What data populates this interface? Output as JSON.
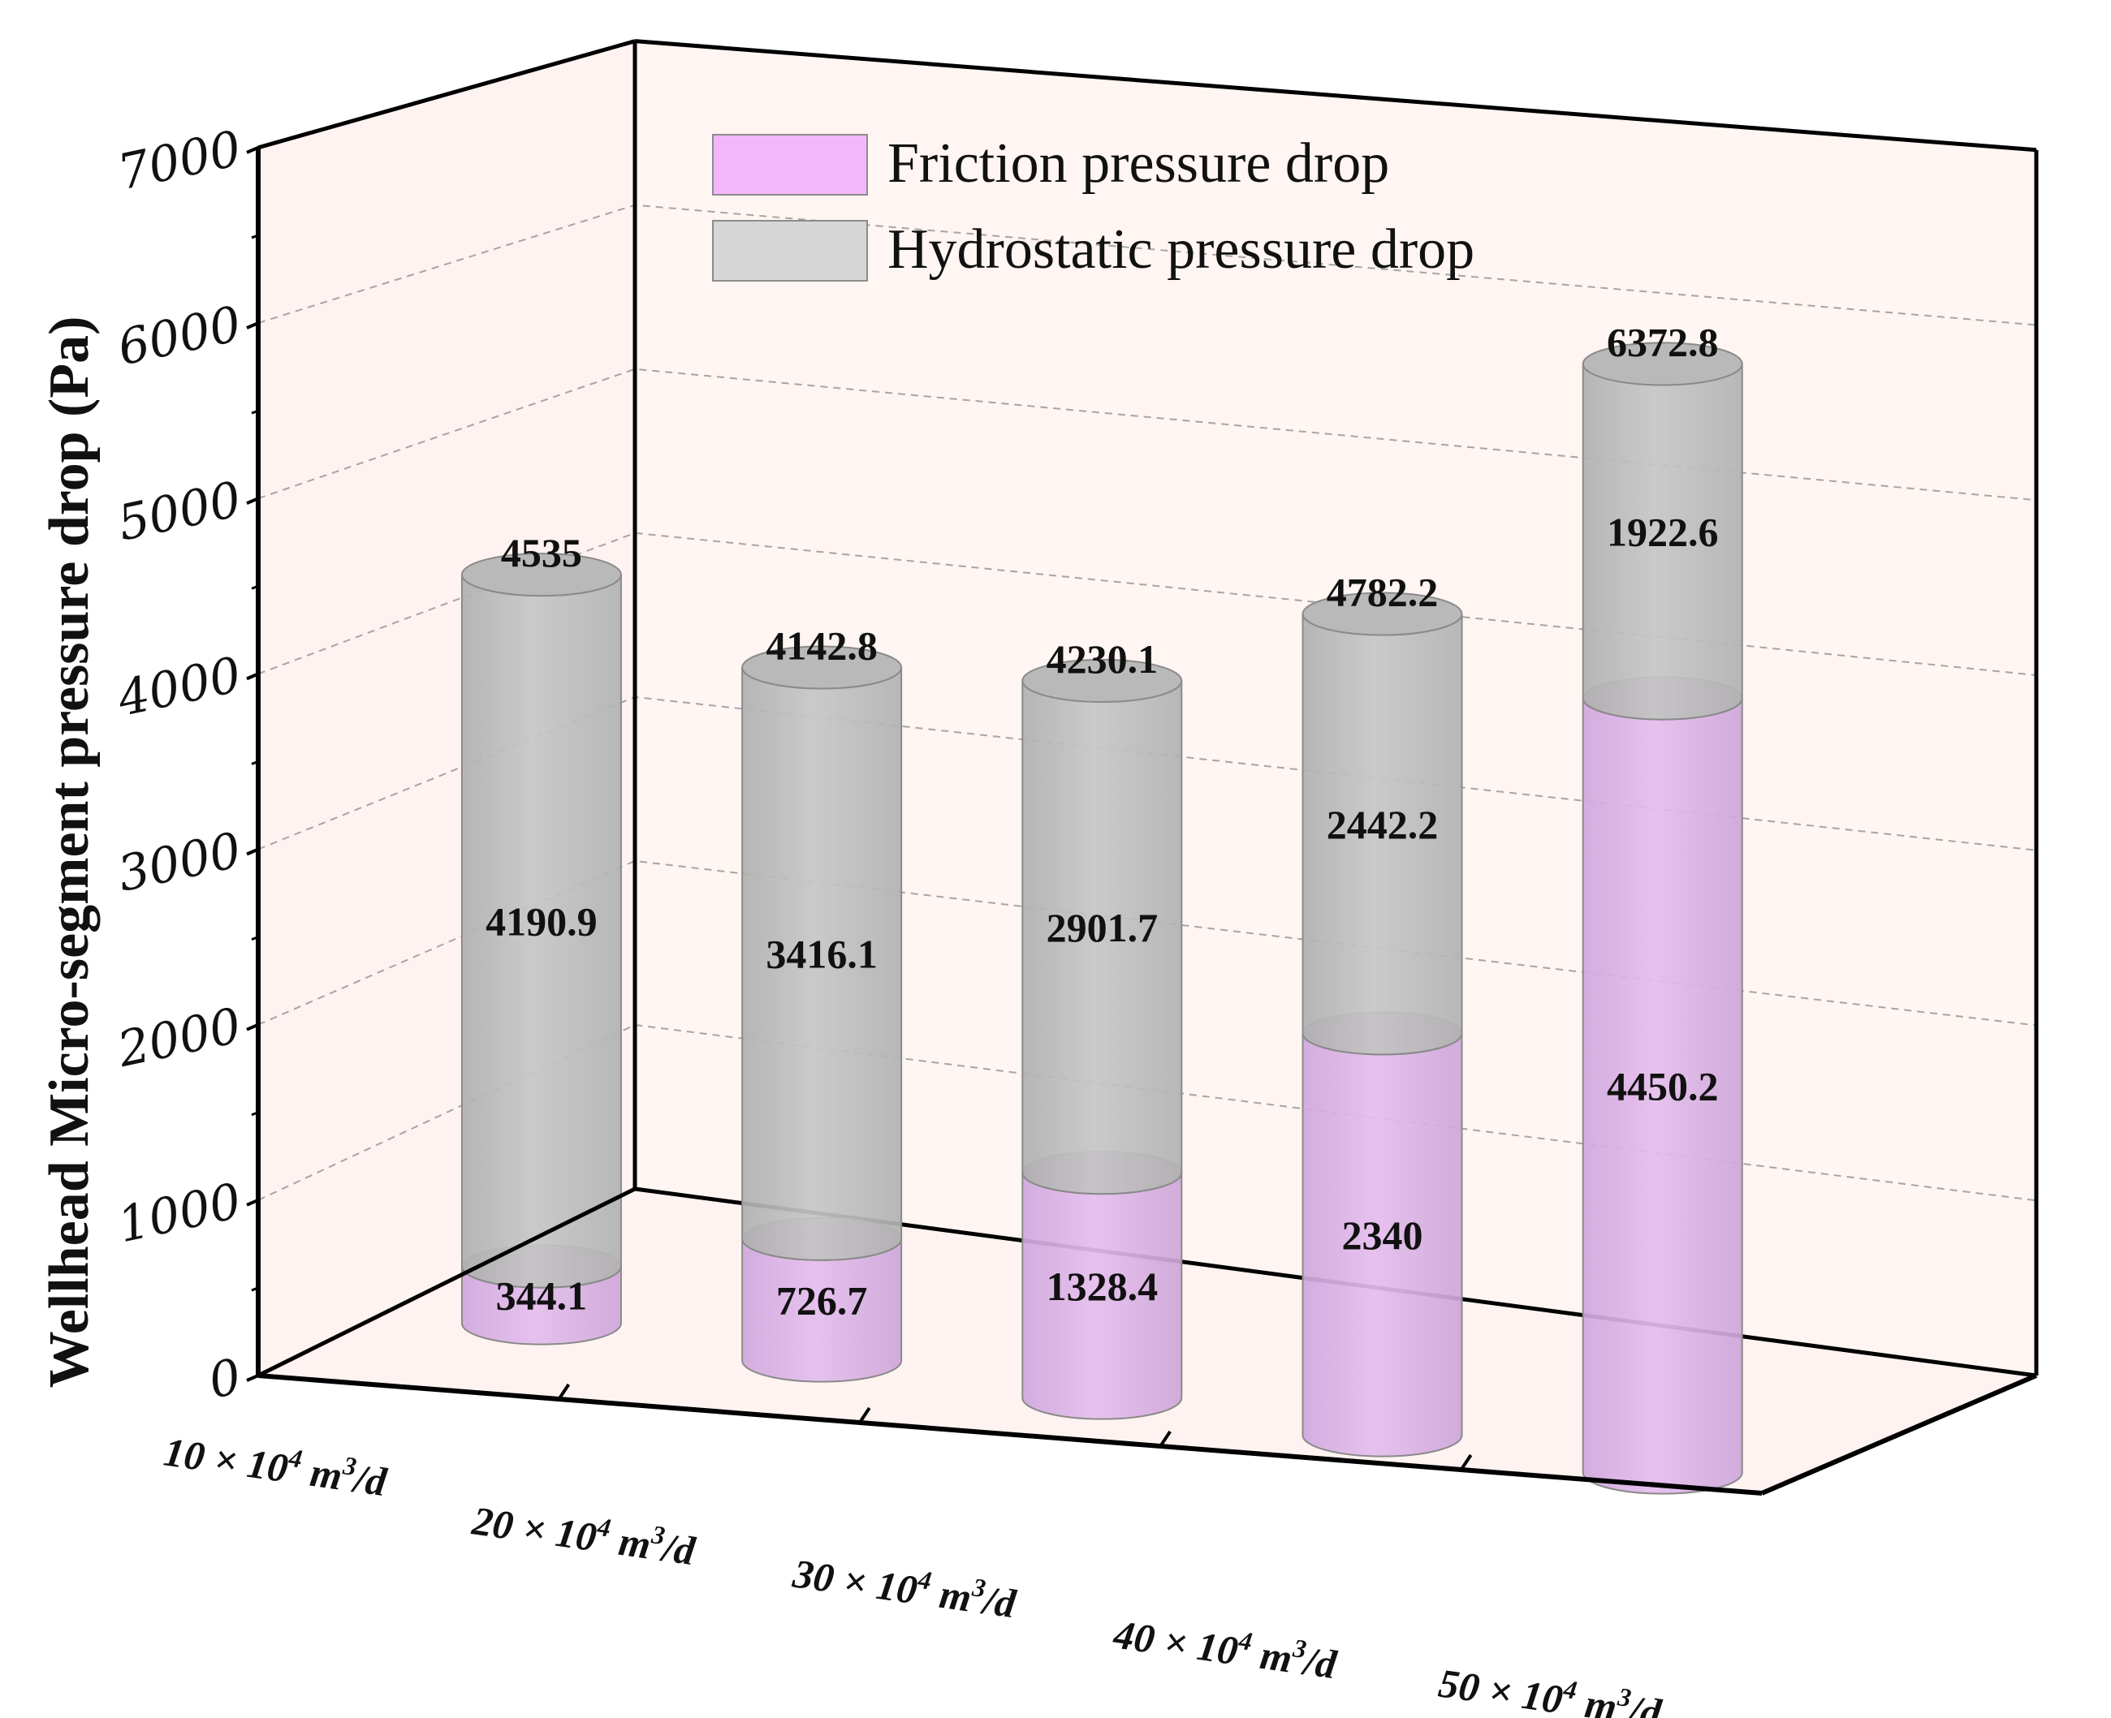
{
  "chart_data": {
    "type": "bar",
    "subtype": "stacked-3d-cylinder",
    "title": "",
    "ylabel": "Wellhead Micro-segment pressure drop (Pa)",
    "xlabel": "",
    "ylim": [
      0,
      7000
    ],
    "yticks": [
      "0",
      "1000",
      "2000",
      "3000",
      "4000",
      "5000",
      "6000",
      "7000"
    ],
    "categories": [
      {
        "base": "10 × 10",
        "exp1": "4",
        "mid": " m",
        "exp2": "3",
        "tail": "/d"
      },
      {
        "base": "20 × 10",
        "exp1": "4",
        "mid": " m",
        "exp2": "3",
        "tail": "/d"
      },
      {
        "base": "30 × 10",
        "exp1": "4",
        "mid": " m",
        "exp2": "3",
        "tail": "/d"
      },
      {
        "base": "40 × 10",
        "exp1": "4",
        "mid": " m",
        "exp2": "3",
        "tail": "/d"
      },
      {
        "base": "50 × 10",
        "exp1": "4",
        "mid": " m",
        "exp2": "3",
        "tail": "/d"
      }
    ],
    "series": [
      {
        "name": "Friction pressure drop",
        "color": "#f0b8f8",
        "values": [
          344.1,
          726.7,
          1328.4,
          2340,
          4450.2
        ],
        "labels": [
          "344.1",
          "726.7",
          "1328.4",
          "2340",
          "4450.2"
        ]
      },
      {
        "name": "Hydrostatic pressure drop",
        "color": "#d2d2d2",
        "values": [
          4190.9,
          3416.1,
          2901.7,
          2442.2,
          1922.6
        ],
        "labels": [
          "4190.9",
          "3416.1",
          "2901.7",
          "2442.2",
          "1922.6"
        ]
      }
    ],
    "totals": [
      4535,
      4142.8,
      4230.1,
      4782.2,
      6372.8
    ],
    "total_labels": [
      "4535",
      "4142.8",
      "4230.1",
      "4782.2",
      "6372.8"
    ],
    "legend_position": "top-center",
    "grid": true
  }
}
